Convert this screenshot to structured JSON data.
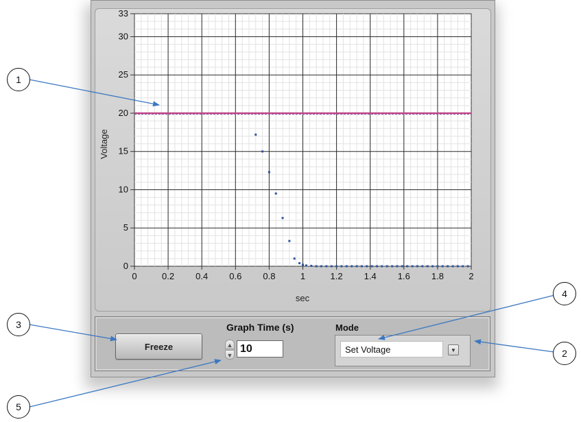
{
  "graph": {
    "y_label": "Voltage",
    "x_label": "sec",
    "y_ticks": [
      "33",
      "30",
      "25",
      "20",
      "15",
      "10",
      "5",
      "0"
    ],
    "x_ticks": [
      "0",
      "0.2",
      "0.4",
      "0.6",
      "0.8",
      "1",
      "1.2",
      "1.4",
      "1.6",
      "1.8",
      "2"
    ],
    "setpoint_color": "#c2478a",
    "points_color": "#2d55a0"
  },
  "chart_data": {
    "type": "scatter",
    "xlim": [
      0,
      2
    ],
    "ylim": [
      0,
      33
    ],
    "xlabel": "sec",
    "ylabel": "Voltage",
    "grid": true,
    "series": [
      {
        "style": "line",
        "x": [
          0,
          2
        ],
        "values": [
          20,
          20
        ]
      },
      {
        "style": "points",
        "x": [
          0.72,
          0.76,
          0.8,
          0.84,
          0.88,
          0.92,
          0.95,
          0.98,
          1.0,
          1.02,
          1.05,
          1.08,
          1.11,
          1.14,
          1.17,
          1.2,
          1.23,
          1.26,
          1.29,
          1.32,
          1.35,
          1.38,
          1.41,
          1.44,
          1.47,
          1.5,
          1.53,
          1.56,
          1.59,
          1.62,
          1.65,
          1.68,
          1.71,
          1.74,
          1.77,
          1.8,
          1.83,
          1.86,
          1.89,
          1.92,
          1.95,
          1.98
        ],
        "values": [
          17.2,
          15.0,
          12.3,
          9.5,
          6.3,
          3.3,
          1.0,
          0.4,
          0.2,
          0.1,
          0.05,
          0,
          0,
          0,
          0,
          0,
          0,
          0,
          0,
          0,
          0,
          0,
          0,
          0,
          0,
          0,
          0,
          0,
          0,
          0,
          0,
          0,
          0,
          0,
          0,
          0,
          0,
          0,
          0,
          0,
          0,
          0
        ]
      }
    ]
  },
  "controls": {
    "freeze_label": "Freeze",
    "graph_time_label": "Graph Time (s)",
    "graph_time_value": "10",
    "mode_label": "Mode",
    "mode_value": "Set Voltage"
  },
  "callouts": [
    "1",
    "2",
    "3",
    "4",
    "5"
  ]
}
